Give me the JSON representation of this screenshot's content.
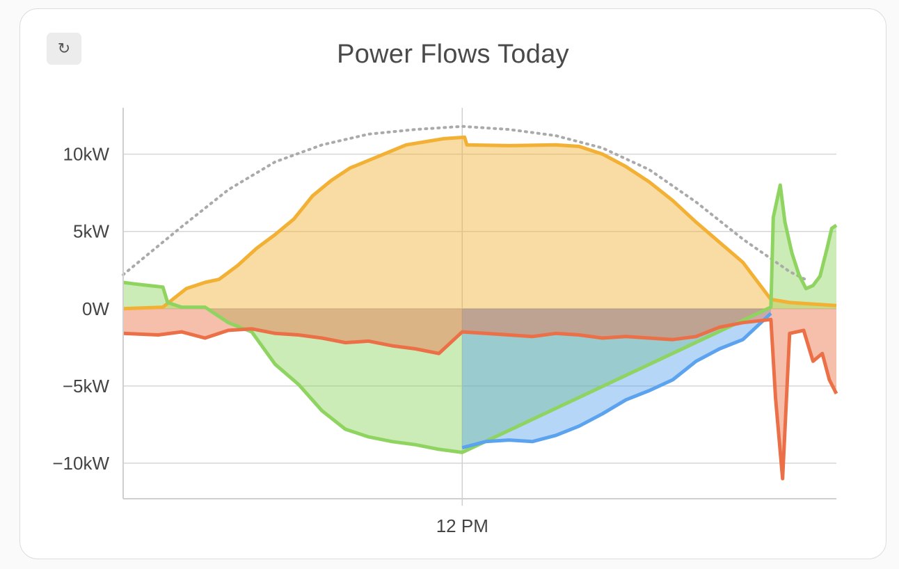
{
  "card": {
    "title": "Power Flows Today",
    "refresh_icon": "refresh-icon",
    "refresh_glyph": "↻"
  },
  "chart_data": {
    "type": "area",
    "title": "Power Flows Today",
    "xlabel": "",
    "ylabel": "",
    "x_unit": "hour of day",
    "xlim": [
      4.75,
      20.0
    ],
    "ylim": [
      -12.3,
      13.0
    ],
    "x_tick_labels": [
      {
        "x": 12,
        "label": "12 PM"
      }
    ],
    "y_ticks": [
      {
        "value": 10,
        "label": "10kW"
      },
      {
        "value": 5,
        "label": "5kW"
      },
      {
        "value": 0,
        "label": "0W"
      },
      {
        "value": -5,
        "label": "−5kW"
      },
      {
        "value": -10,
        "label": "−10kW"
      }
    ],
    "grid": true,
    "legend": "none",
    "colors": {
      "orange": "#f2b134",
      "green": "#8fd460",
      "blue": "#5ba3ee",
      "red": "#ec7047",
      "salmon": "#f2a489",
      "dotted": "#aaaaaa"
    },
    "series": [
      {
        "style": "dotted",
        "color": "#aaaaaa",
        "points": [
          [
            4.75,
            2.2
          ],
          [
            6,
            5.3
          ],
          [
            7,
            7.7
          ],
          [
            8,
            9.5
          ],
          [
            9,
            10.6
          ],
          [
            10,
            11.3
          ],
          [
            11,
            11.6
          ],
          [
            12,
            11.8
          ],
          [
            13,
            11.6
          ],
          [
            14,
            11.2
          ],
          [
            15,
            10.4
          ],
          [
            16,
            9.0
          ],
          [
            17,
            6.9
          ],
          [
            18,
            4.5
          ],
          [
            19,
            2.4
          ],
          [
            19.4,
            1.8
          ]
        ]
      },
      {
        "style": "area",
        "color": "#f2b134",
        "points": [
          [
            4.75,
            0
          ],
          [
            5.6,
            0.1
          ],
          [
            5.85,
            0.7
          ],
          [
            6.1,
            1.3
          ],
          [
            6.5,
            1.7
          ],
          [
            6.8,
            1.9
          ],
          [
            7.2,
            2.8
          ],
          [
            7.6,
            3.9
          ],
          [
            8,
            4.8
          ],
          [
            8.4,
            5.8
          ],
          [
            8.8,
            7.3
          ],
          [
            9.2,
            8.3
          ],
          [
            9.6,
            9.1
          ],
          [
            10,
            9.6
          ],
          [
            10.4,
            10.1
          ],
          [
            10.8,
            10.6
          ],
          [
            11.2,
            10.8
          ],
          [
            11.6,
            11.0
          ],
          [
            12.05,
            11.1
          ],
          [
            12.1,
            10.6
          ],
          [
            13,
            10.55
          ],
          [
            14,
            10.6
          ],
          [
            14.5,
            10.5
          ],
          [
            15,
            10.0
          ],
          [
            15.5,
            9.2
          ],
          [
            16,
            8.2
          ],
          [
            16.5,
            7.0
          ],
          [
            17,
            5.6
          ],
          [
            17.5,
            4.3
          ],
          [
            18,
            3.0
          ],
          [
            18.3,
            1.8
          ],
          [
            18.6,
            0.6
          ],
          [
            19,
            0.4
          ],
          [
            19.5,
            0.3
          ],
          [
            20,
            0.2
          ]
        ]
      },
      {
        "style": "area",
        "color": "#8fd460",
        "points": [
          [
            4.75,
            1.7
          ],
          [
            5,
            1.6
          ],
          [
            5.3,
            1.5
          ],
          [
            5.6,
            1.4
          ],
          [
            5.7,
            0.4
          ],
          [
            6,
            0.1
          ],
          [
            6.5,
            0.1
          ],
          [
            7,
            -0.9
          ],
          [
            7.5,
            -1.5
          ],
          [
            8,
            -3.6
          ],
          [
            8.5,
            -4.9
          ],
          [
            9,
            -6.6
          ],
          [
            9.5,
            -7.8
          ],
          [
            10,
            -8.3
          ],
          [
            10.5,
            -8.6
          ],
          [
            11,
            -8.8
          ],
          [
            11.5,
            -9.1
          ],
          [
            12,
            -9.3
          ],
          [
            18.6,
            0.1
          ],
          [
            18.65,
            5.9
          ],
          [
            18.8,
            8.0
          ],
          [
            18.9,
            5.6
          ],
          [
            19.05,
            3.6
          ],
          [
            19.2,
            2.2
          ],
          [
            19.35,
            1.3
          ],
          [
            19.5,
            1.5
          ],
          [
            19.65,
            2.1
          ],
          [
            19.8,
            3.9
          ],
          [
            19.9,
            5.2
          ],
          [
            20,
            5.4
          ]
        ]
      },
      {
        "style": "area",
        "color": "#5ba3ee",
        "points": [
          [
            12,
            -9.0
          ],
          [
            12.5,
            -8.6
          ],
          [
            13,
            -8.5
          ],
          [
            13.5,
            -8.6
          ],
          [
            14,
            -8.2
          ],
          [
            14.5,
            -7.6
          ],
          [
            15,
            -6.8
          ],
          [
            15.5,
            -5.9
          ],
          [
            16,
            -5.3
          ],
          [
            16.5,
            -4.6
          ],
          [
            17,
            -3.4
          ],
          [
            17.5,
            -2.6
          ],
          [
            18,
            -2.0
          ],
          [
            18.6,
            -0.3
          ]
        ]
      },
      {
        "style": "area",
        "color": "#ec7047",
        "points": [
          [
            4.75,
            -1.6
          ],
          [
            5.5,
            -1.7
          ],
          [
            6,
            -1.5
          ],
          [
            6.5,
            -1.9
          ],
          [
            7,
            -1.4
          ],
          [
            7.5,
            -1.3
          ],
          [
            8,
            -1.6
          ],
          [
            8.5,
            -1.7
          ],
          [
            9,
            -1.9
          ],
          [
            9.5,
            -2.2
          ],
          [
            10,
            -2.1
          ],
          [
            10.5,
            -2.4
          ],
          [
            11,
            -2.6
          ],
          [
            11.5,
            -2.9
          ],
          [
            12,
            -1.5
          ],
          [
            12.5,
            -1.6
          ],
          [
            13,
            -1.7
          ],
          [
            13.5,
            -1.8
          ],
          [
            14,
            -1.6
          ],
          [
            14.5,
            -1.7
          ],
          [
            15,
            -1.9
          ],
          [
            15.5,
            -1.8
          ],
          [
            16,
            -1.9
          ],
          [
            16.5,
            -2.0
          ],
          [
            17,
            -1.8
          ],
          [
            17.5,
            -1.2
          ],
          [
            18,
            -0.9
          ],
          [
            18.6,
            -0.7
          ],
          [
            18.7,
            -5.8
          ],
          [
            18.85,
            -11.0
          ],
          [
            19,
            -1.6
          ],
          [
            19.3,
            -1.4
          ],
          [
            19.5,
            -3.4
          ],
          [
            19.7,
            -2.9
          ],
          [
            19.85,
            -4.6
          ],
          [
            20,
            -5.5
          ]
        ]
      }
    ]
  }
}
